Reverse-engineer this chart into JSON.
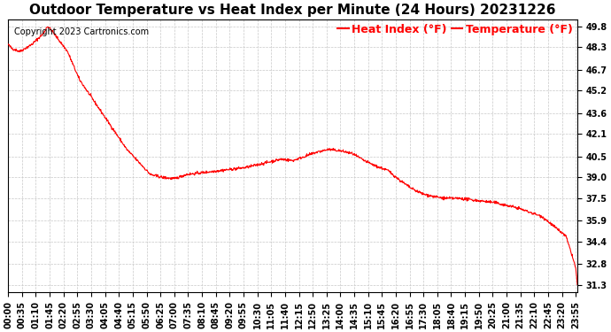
{
  "title": "Outdoor Temperature vs Heat Index per Minute (24 Hours) 20231226",
  "copyright": "Copyright 2023 Cartronics.com",
  "legend_heat": "Heat Index (°F)",
  "legend_temp": "Temperature (°F)",
  "line_color": "#ff0000",
  "background_color": "#ffffff",
  "grid_color": "#c8c8c8",
  "yticks": [
    31.3,
    32.8,
    34.4,
    35.9,
    37.5,
    39.0,
    40.5,
    42.1,
    43.6,
    45.2,
    46.7,
    48.3,
    49.8
  ],
  "ymin": 30.8,
  "ymax": 50.3,
  "title_fontsize": 11,
  "tick_fontsize": 7,
  "legend_fontsize": 9,
  "copyright_fontsize": 7,
  "ctrl_x": [
    0,
    10,
    30,
    60,
    90,
    95,
    100,
    110,
    150,
    180,
    240,
    300,
    360,
    390,
    420,
    450,
    480,
    510,
    540,
    570,
    600,
    630,
    660,
    690,
    720,
    750,
    780,
    810,
    840,
    870,
    900,
    930,
    960,
    990,
    1020,
    1050,
    1080,
    1110,
    1140,
    1170,
    1200,
    1230,
    1260,
    1290,
    1320,
    1350,
    1380,
    1410,
    1425,
    1435,
    1439
  ],
  "ctrl_y": [
    48.5,
    48.2,
    48.0,
    48.5,
    49.3,
    49.6,
    49.8,
    49.5,
    48.0,
    46.0,
    43.5,
    41.0,
    39.2,
    39.0,
    38.9,
    39.2,
    39.3,
    39.4,
    39.5,
    39.6,
    39.7,
    39.9,
    40.1,
    40.3,
    40.2,
    40.5,
    40.8,
    41.0,
    40.9,
    40.7,
    40.2,
    39.8,
    39.5,
    38.8,
    38.2,
    37.8,
    37.6,
    37.5,
    37.5,
    37.4,
    37.3,
    37.2,
    37.0,
    36.8,
    36.5,
    36.2,
    35.5,
    34.8,
    33.5,
    32.5,
    31.3
  ],
  "noise_seed": 42,
  "noise_std": 0.05
}
